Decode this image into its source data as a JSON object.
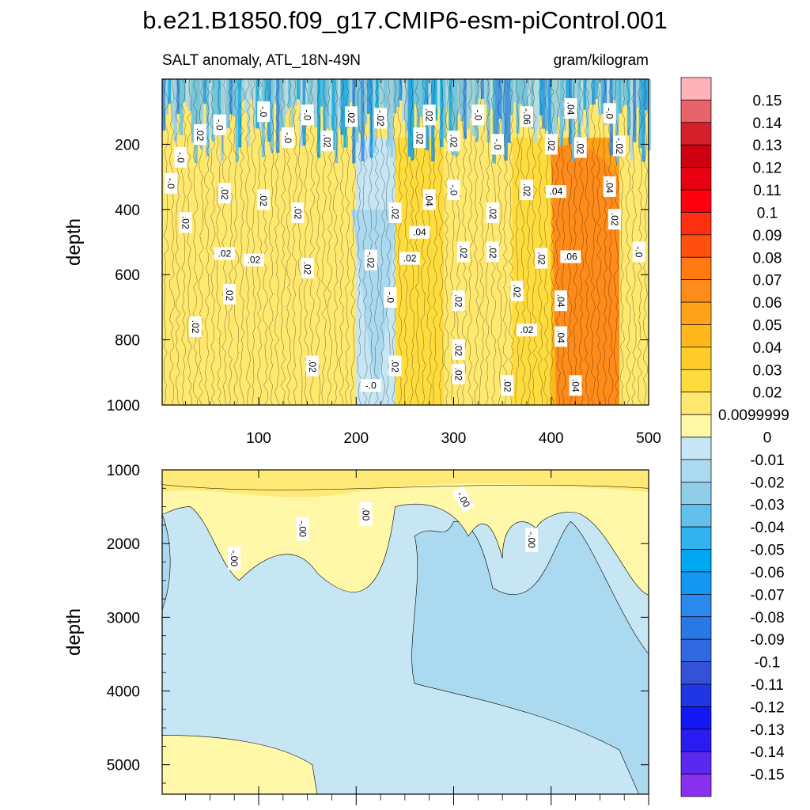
{
  "chart_data": [
    {
      "type": "heatmap",
      "title": "b.e21.B1850.f09_g17.CMIP6-esm-piControl.001",
      "subtitle_left": "SALT anomaly, ATL_18N-49N",
      "subtitle_right": "gram/kilogram",
      "panel": "upper",
      "xlabel": "",
      "ylabel": "depth",
      "xlim": [
        1,
        500
      ],
      "ylim": [
        1000,
        0
      ],
      "x_ticks": [
        100,
        200,
        300,
        400,
        500
      ],
      "y_ticks": [
        200,
        400,
        600,
        800,
        1000
      ],
      "region_values": [
        {
          "region": "0-40 m, all times",
          "value": -0.02
        },
        {
          "region": "x 1-200, 300-1000 m",
          "value": 0.02
        },
        {
          "region": "x 200-240, 400-900 m",
          "value": -0.01
        },
        {
          "region": "x 240-360, 200-1000 m",
          "value": 0.03
        },
        {
          "region": "x 360-400, 150-1000 m",
          "value": 0.02
        },
        {
          "region": "x 400-470, 200-1000 m",
          "value": 0.05
        },
        {
          "region": "x 470-500, 200-700 m",
          "value": 0.01
        }
      ],
      "contour_labels": [
        ".02",
        "-.0",
        ".04",
        ".06",
        "-.02",
        ".00",
        "-.06",
        ".0"
      ]
    },
    {
      "type": "heatmap",
      "panel": "lower",
      "xlabel": "",
      "ylabel": "depth",
      "xlim": [
        1,
        500
      ],
      "ylim": [
        5400,
        1000
      ],
      "y_ticks": [
        1000,
        2000,
        3000,
        4000,
        5000
      ],
      "region_values": [
        {
          "region": "1000-1500 m, all times",
          "value": 0.005
        },
        {
          "region": "x 1-500, 1500-3000 m (light blue)",
          "value": -0.005
        },
        {
          "region": "x 260-500, 2000-5000 m (darker blue)",
          "value": -0.015
        },
        {
          "region": "x 1-160, 4600-5400 m",
          "value": 0.003
        }
      ],
      "contour_labels": [
        "-.00",
        "-.00",
        ".00",
        "-.00",
        "-.00"
      ]
    }
  ],
  "colorbar": {
    "labels": [
      "0.15",
      "0.14",
      "0.13",
      "0.12",
      "0.11",
      "0.1",
      "0.09",
      "0.08",
      "0.07",
      "0.06",
      "0.05",
      "0.04",
      "0.03",
      "0.02",
      "0.0099999",
      "0",
      "-0.01",
      "-0.02",
      "-0.03",
      "-0.04",
      "-0.05",
      "-0.06",
      "-0.07",
      "-0.08",
      "-0.09",
      "-0.1",
      "-0.11",
      "-0.12",
      "-0.13",
      "-0.14",
      "-0.15"
    ],
    "colors": [
      "#ffb2b7",
      "#e8636b",
      "#d4202a",
      "#cf0010",
      "#e60010",
      "#ff0010",
      "#ff3010",
      "#ff5010",
      "#ff7a12",
      "#ff8c1a",
      "#ffa21a",
      "#ffb81a",
      "#ffcc29",
      "#ffdc3d",
      "#ffe86e",
      "#fff8a8",
      "#c6e6f4",
      "#abdaf0",
      "#8fcde9",
      "#62c0ec",
      "#33b3ee",
      "#00a8f4",
      "#1298f0",
      "#2a88ee",
      "#2878e6",
      "#3068e0",
      "#3452d8",
      "#2036e4",
      "#1418f4",
      "#2a1cf0",
      "#5a28f0",
      "#8a30f0"
    ]
  },
  "contour_style": {
    "line_color": "#000000"
  }
}
